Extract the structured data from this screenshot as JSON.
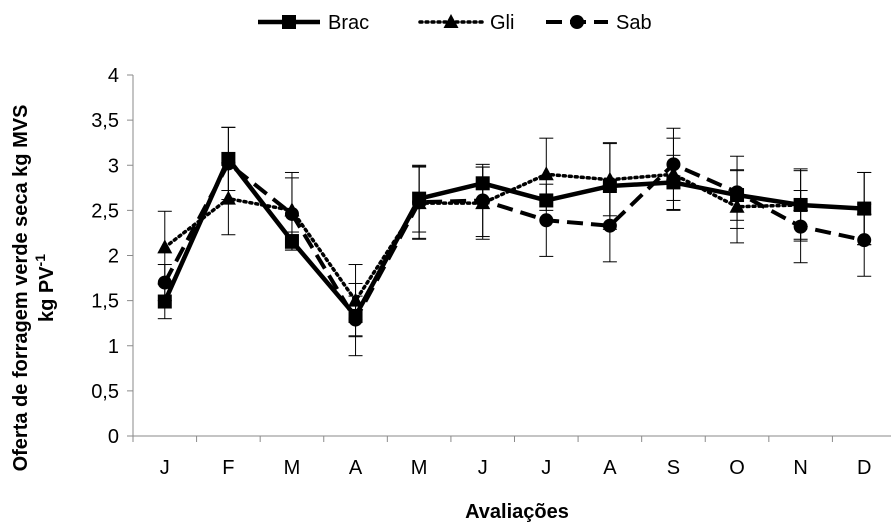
{
  "chart_data": {
    "type": "line",
    "title": "",
    "xlabel": "Avaliações",
    "ylabel_line1": "Oferta de forragem verde seca kg MVS",
    "ylabel_line2": "kg PV",
    "ylabel_superscript": "-1",
    "categories": [
      "J",
      "F",
      "M",
      "A",
      "M",
      "J",
      "J",
      "A",
      "S",
      "O",
      "N",
      "D"
    ],
    "ylim": [
      0,
      4
    ],
    "yticks": [
      0,
      0.5,
      1,
      1.5,
      2,
      2.5,
      3,
      3.5,
      4
    ],
    "ytick_labels": [
      "0",
      "0,5",
      "1",
      "1,5",
      "2",
      "2,5",
      "3",
      "3,5",
      "4"
    ],
    "grid": false,
    "legend_position": "top-center",
    "series": [
      {
        "name": "Brac",
        "style": "solid",
        "marker": "square",
        "color": "#000000",
        "values": [
          1.49,
          3.07,
          2.16,
          1.33,
          2.63,
          2.8,
          2.61,
          2.77,
          2.81,
          2.67,
          2.56,
          2.52
        ],
        "error": [
          0.19,
          0.35,
          0.1,
          0.22,
          0.37,
          0.18,
          0.0,
          0.48,
          0.3,
          0.28,
          0.38,
          0.4
        ]
      },
      {
        "name": "Gli",
        "style": "dotted",
        "marker": "triangle",
        "color": "#000000",
        "values": [
          2.09,
          2.63,
          2.5,
          1.5,
          2.58,
          2.58,
          2.9,
          2.84,
          2.9,
          2.54,
          2.56,
          2.52
        ],
        "error": [
          0.4,
          0.4,
          0.42,
          0.4,
          0.4,
          0.4,
          0.4,
          0.4,
          0.4,
          0.4,
          0.4,
          0.4
        ]
      },
      {
        "name": "Sab",
        "style": "dashed",
        "marker": "circle",
        "color": "#000000",
        "values": [
          1.7,
          3.02,
          2.46,
          1.29,
          2.59,
          2.61,
          2.39,
          2.33,
          3.01,
          2.7,
          2.32,
          2.17
        ],
        "error": [
          0.2,
          0.4,
          0.4,
          0.4,
          0.4,
          0.4,
          0.4,
          0.4,
          0.4,
          0.4,
          0.4,
          0.4
        ]
      }
    ]
  }
}
